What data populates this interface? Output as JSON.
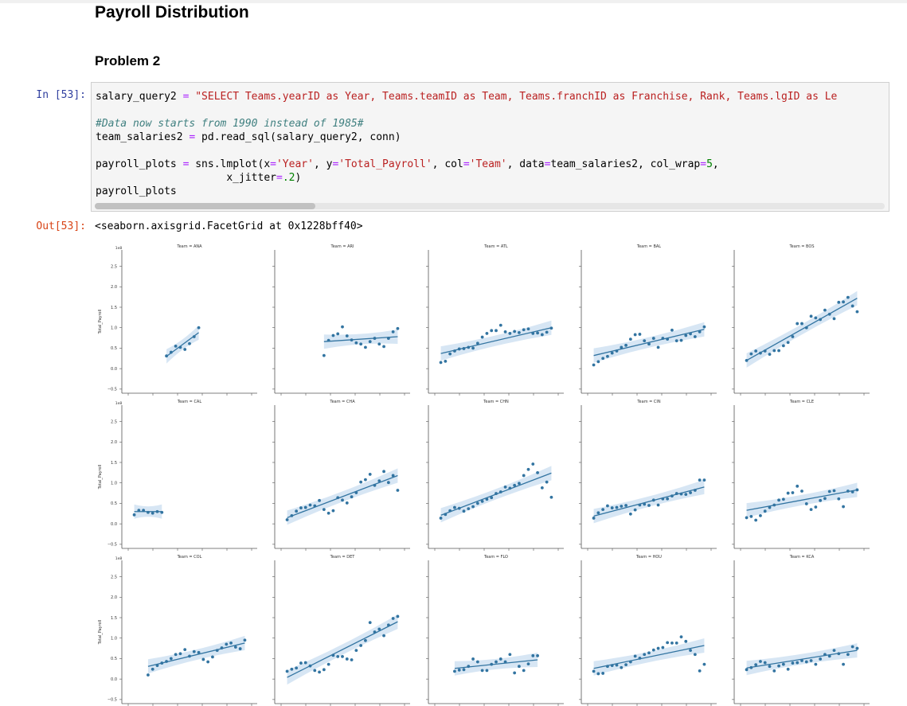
{
  "page": {
    "title": "Payroll Distribution",
    "subtitle": "Problem 2"
  },
  "cell": {
    "in_prompt": "In [53]:",
    "out_prompt": "Out[53]:",
    "code": {
      "line1_var": "salary_query2",
      "line1_op": " = ",
      "line1_str": "\"SELECT Teams.yearID as Year, Teams.teamID as Team, Teams.franchID as Franchise, Rank, Teams.lgID as Le",
      "comment": "#Data now starts from 1990 instead of 1985#",
      "line3_a": "team_salaries2 ",
      "line3_op": "=",
      "line3_b": " pd.read_sql(salary_query2, conn)",
      "line5_a": "payroll_plots ",
      "line5_op": "=",
      "line5_b": " sns.lmplot(x",
      "line5_op2": "=",
      "line5_s1": "'Year'",
      "line5_c": ", y",
      "line5_op3": "=",
      "line5_s2": "'Total_Payroll'",
      "line5_d": ", col",
      "line5_op4": "=",
      "line5_s3": "'Team'",
      "line5_e": ", data",
      "line5_op5": "=",
      "line5_f": "team_salaries2, col_wrap",
      "line5_op6": "=",
      "line5_num": "5",
      "line5_g": ",",
      "line6_a": "                     x_jitter",
      "line6_op": "=",
      "line6_num": ".2",
      "line6_b": ")",
      "line7": "payroll_plots"
    },
    "output_text": "<seaborn.axisgrid.FacetGrid at 0x1228bff40>"
  },
  "chart_data": {
    "type": "scatter",
    "facet_by": "Team",
    "col_wrap": 5,
    "xlabel": "",
    "ylabel": "Total_Payroll",
    "ylim": [
      -0.6,
      2.9
    ],
    "y_scale_note": "1e8",
    "yticks": [
      "2.5",
      "2.0",
      "1.5",
      "1.0",
      "0.5",
      "0.0",
      "−0.5"
    ],
    "ytick_values": [
      2.5,
      2.0,
      1.5,
      1.0,
      0.5,
      0.0,
      -0.5
    ],
    "xlim": [
      1988,
      2016
    ],
    "point_color": "#3274a1",
    "band_color": "#c6dbef",
    "facets": [
      {
        "title": "Team = ANA",
        "x": [
          1997,
          1998,
          1999,
          2000,
          2001,
          2002,
          2003,
          2004
        ],
        "y": [
          0.31,
          0.4,
          0.55,
          0.52,
          0.47,
          0.61,
          0.78,
          1.0
        ],
        "fit": [
          [
            1997,
            0.3
          ],
          [
            2004,
            0.88
          ]
        ]
      },
      {
        "title": "Team = ARI",
        "x": [
          1998,
          1999,
          2000,
          2001,
          2002,
          2003,
          2004,
          2005,
          2006,
          2007,
          2008,
          2009,
          2010,
          2011,
          2012,
          2013,
          2014
        ],
        "y": [
          0.32,
          0.69,
          0.81,
          0.85,
          1.02,
          0.8,
          0.7,
          0.63,
          0.6,
          0.52,
          0.66,
          0.74,
          0.6,
          0.54,
          0.74,
          0.9,
          0.98
        ],
        "fit": [
          [
            1998,
            0.66
          ],
          [
            2014,
            0.78
          ]
        ]
      },
      {
        "title": "Team = ATL",
        "x": [
          1990,
          1991,
          1992,
          1993,
          1994,
          1995,
          1996,
          1997,
          1998,
          1999,
          2000,
          2001,
          2002,
          2003,
          2004,
          2005,
          2006,
          2007,
          2008,
          2009,
          2010,
          2011,
          2012,
          2013,
          2014
        ],
        "y": [
          0.15,
          0.18,
          0.36,
          0.43,
          0.48,
          0.49,
          0.52,
          0.5,
          0.62,
          0.77,
          0.86,
          0.93,
          0.93,
          1.06,
          0.9,
          0.86,
          0.91,
          0.88,
          0.95,
          0.97,
          0.86,
          0.87,
          0.83,
          0.89,
          0.99
        ],
        "fit": [
          [
            1990,
            0.37
          ],
          [
            2014,
            1.0
          ]
        ]
      },
      {
        "title": "Team = BAL",
        "x": [
          1990,
          1991,
          1992,
          1993,
          1994,
          1995,
          1996,
          1997,
          1998,
          1999,
          2000,
          2001,
          2002,
          2003,
          2004,
          2005,
          2006,
          2007,
          2008,
          2009,
          2010,
          2011,
          2012,
          2013,
          2014
        ],
        "y": [
          0.09,
          0.17,
          0.25,
          0.3,
          0.38,
          0.43,
          0.52,
          0.57,
          0.72,
          0.83,
          0.84,
          0.68,
          0.6,
          0.74,
          0.52,
          0.74,
          0.72,
          0.94,
          0.68,
          0.69,
          0.81,
          0.85,
          0.78,
          0.9,
          1.02
        ],
        "fit": [
          [
            1990,
            0.32
          ],
          [
            2014,
            0.96
          ]
        ]
      },
      {
        "title": "Team = BOS",
        "x": [
          1990,
          1991,
          1992,
          1993,
          1994,
          1995,
          1996,
          1997,
          1998,
          1999,
          2000,
          2001,
          2002,
          2003,
          2004,
          2005,
          2006,
          2007,
          2008,
          2009,
          2010,
          2011,
          2012,
          2013,
          2014
        ],
        "y": [
          0.2,
          0.36,
          0.43,
          0.38,
          0.43,
          0.35,
          0.44,
          0.44,
          0.56,
          0.64,
          0.78,
          1.1,
          1.1,
          1.0,
          1.28,
          1.24,
          1.2,
          1.43,
          1.33,
          1.22,
          1.62,
          1.63,
          1.74,
          1.53,
          1.39
        ],
        "fit": [
          [
            1990,
            0.2
          ],
          [
            2014,
            1.72
          ]
        ]
      },
      {
        "title": "Team = CAL",
        "x": [
          1990,
          1991,
          1992,
          1993,
          1994,
          1995,
          1996
        ],
        "y": [
          0.22,
          0.33,
          0.33,
          0.28,
          0.26,
          0.3,
          0.28
        ],
        "fit": [
          [
            1990,
            0.3
          ],
          [
            1996,
            0.3
          ]
        ]
      },
      {
        "title": "Team = CHA",
        "x": [
          1990,
          1991,
          1992,
          1993,
          1994,
          1995,
          1996,
          1997,
          1998,
          1999,
          2000,
          2001,
          2002,
          2003,
          2004,
          2005,
          2006,
          2007,
          2008,
          2009,
          2010,
          2011,
          2012,
          2013,
          2014
        ],
        "y": [
          0.1,
          0.2,
          0.31,
          0.39,
          0.4,
          0.46,
          0.44,
          0.57,
          0.35,
          0.26,
          0.32,
          0.64,
          0.58,
          0.51,
          0.66,
          0.76,
          1.02,
          1.08,
          1.21,
          0.94,
          1.05,
          1.28,
          1.01,
          1.18,
          0.82
        ],
        "fit": [
          [
            1990,
            0.15
          ],
          [
            2014,
            1.18
          ]
        ]
      },
      {
        "title": "Team = CHN",
        "x": [
          1990,
          1991,
          1992,
          1993,
          1994,
          1995,
          1996,
          1997,
          1998,
          1999,
          2000,
          2001,
          2002,
          2003,
          2004,
          2005,
          2006,
          2007,
          2008,
          2009,
          2010,
          2011,
          2012,
          2013,
          2014
        ],
        "y": [
          0.14,
          0.23,
          0.32,
          0.4,
          0.38,
          0.31,
          0.37,
          0.42,
          0.5,
          0.55,
          0.6,
          0.64,
          0.74,
          0.78,
          0.9,
          0.87,
          0.94,
          0.99,
          1.18,
          1.33,
          1.46,
          1.25,
          0.88,
          1.02,
          0.65
        ],
        "fit": [
          [
            1990,
            0.21
          ],
          [
            2014,
            1.24
          ]
        ]
      },
      {
        "title": "Team = CIN",
        "x": [
          1990,
          1991,
          1992,
          1993,
          1994,
          1995,
          1996,
          1997,
          1998,
          1999,
          2000,
          2001,
          2002,
          2003,
          2004,
          2005,
          2006,
          2007,
          2008,
          2009,
          2010,
          2011,
          2012,
          2013,
          2014
        ],
        "y": [
          0.14,
          0.27,
          0.35,
          0.44,
          0.39,
          0.4,
          0.43,
          0.45,
          0.24,
          0.34,
          0.46,
          0.48,
          0.45,
          0.58,
          0.46,
          0.61,
          0.61,
          0.68,
          0.74,
          0.73,
          0.72,
          0.76,
          0.82,
          1.07,
          1.07
        ],
        "fit": [
          [
            1990,
            0.19
          ],
          [
            2014,
            0.9
          ]
        ]
      },
      {
        "title": "Team = CLE",
        "x": [
          1990,
          1991,
          1992,
          1993,
          1994,
          1995,
          1996,
          1997,
          1998,
          1999,
          2000,
          2001,
          2002,
          2003,
          2004,
          2005,
          2006,
          2007,
          2008,
          2009,
          2010,
          2011,
          2012,
          2013,
          2014
        ],
        "y": [
          0.15,
          0.18,
          0.09,
          0.2,
          0.31,
          0.4,
          0.46,
          0.58,
          0.6,
          0.75,
          0.76,
          0.92,
          0.8,
          0.49,
          0.35,
          0.41,
          0.57,
          0.62,
          0.79,
          0.81,
          0.61,
          0.42,
          0.8,
          0.78,
          0.83
        ],
        "fit": [
          [
            1990,
            0.33
          ],
          [
            2014,
            0.83
          ]
        ]
      },
      {
        "title": "Team = COL",
        "x": [
          1993,
          1994,
          1995,
          1996,
          1997,
          1998,
          1999,
          2000,
          2001,
          2002,
          2003,
          2004,
          2005,
          2006,
          2007,
          2008,
          2009,
          2010,
          2011,
          2012,
          2013,
          2014
        ],
        "y": [
          0.1,
          0.24,
          0.33,
          0.39,
          0.43,
          0.5,
          0.6,
          0.62,
          0.72,
          0.56,
          0.67,
          0.65,
          0.48,
          0.42,
          0.54,
          0.7,
          0.76,
          0.85,
          0.88,
          0.78,
          0.74,
          0.95
        ],
        "fit": [
          [
            1993,
            0.31
          ],
          [
            2014,
            0.88
          ]
        ]
      },
      {
        "title": "Team = DET",
        "x": [
          1990,
          1991,
          1992,
          1993,
          1994,
          1995,
          1996,
          1997,
          1998,
          1999,
          2000,
          2001,
          2002,
          2003,
          2004,
          2005,
          2006,
          2007,
          2008,
          2009,
          2010,
          2011,
          2012,
          2013,
          2014
        ],
        "y": [
          0.19,
          0.24,
          0.27,
          0.39,
          0.4,
          0.32,
          0.21,
          0.17,
          0.23,
          0.36,
          0.58,
          0.55,
          0.55,
          0.49,
          0.47,
          0.7,
          0.82,
          0.94,
          1.38,
          1.15,
          1.22,
          1.06,
          1.32,
          1.48,
          1.53
        ],
        "fit": [
          [
            1990,
            0.04
          ],
          [
            2014,
            1.4
          ]
        ]
      },
      {
        "title": "Team = FLO",
        "x": [
          1993,
          1994,
          1995,
          1996,
          1997,
          1998,
          1999,
          2000,
          2001,
          2002,
          2003,
          2004,
          2005,
          2006,
          2007,
          2008,
          2009,
          2010,
          2011
        ],
        "y": [
          0.19,
          0.22,
          0.23,
          0.31,
          0.49,
          0.42,
          0.21,
          0.21,
          0.36,
          0.42,
          0.49,
          0.42,
          0.6,
          0.15,
          0.31,
          0.21,
          0.37,
          0.57,
          0.57
        ],
        "fit": [
          [
            1993,
            0.26
          ],
          [
            2011,
            0.47
          ]
        ]
      },
      {
        "title": "Team = HOU",
        "x": [
          1990,
          1991,
          1992,
          1993,
          1994,
          1995,
          1996,
          1997,
          1998,
          1999,
          2000,
          2001,
          2002,
          2003,
          2004,
          2005,
          2006,
          2007,
          2008,
          2009,
          2010,
          2011,
          2012,
          2013,
          2014
        ],
        "y": [
          0.19,
          0.13,
          0.14,
          0.31,
          0.33,
          0.34,
          0.28,
          0.35,
          0.42,
          0.56,
          0.51,
          0.6,
          0.64,
          0.71,
          0.75,
          0.77,
          0.89,
          0.88,
          0.88,
          1.03,
          0.92,
          0.7,
          0.6,
          0.2,
          0.36
        ],
        "fit": [
          [
            1990,
            0.26
          ],
          [
            2014,
            0.82
          ]
        ]
      },
      {
        "title": "Team = KCA",
        "x": [
          1990,
          1991,
          1992,
          1993,
          1994,
          1995,
          1996,
          1997,
          1998,
          1999,
          2000,
          2001,
          2002,
          2003,
          2004,
          2005,
          2006,
          2007,
          2008,
          2009,
          2010,
          2011,
          2012,
          2013,
          2014
        ],
        "y": [
          0.23,
          0.28,
          0.35,
          0.43,
          0.4,
          0.31,
          0.2,
          0.32,
          0.36,
          0.24,
          0.39,
          0.4,
          0.45,
          0.42,
          0.45,
          0.36,
          0.49,
          0.6,
          0.56,
          0.7,
          0.62,
          0.36,
          0.6,
          0.79,
          0.75
        ],
        "fit": [
          [
            1990,
            0.27
          ],
          [
            2014,
            0.7
          ]
        ]
      }
    ]
  }
}
